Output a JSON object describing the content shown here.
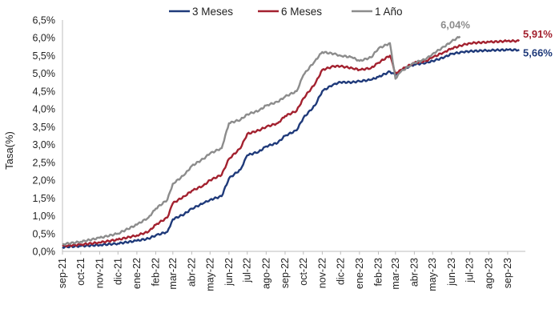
{
  "chart_data": {
    "type": "line",
    "ylabel": "Tasa(%)",
    "ylim": [
      0,
      6.5
    ],
    "yticks": [
      "0,0%",
      "0,5%",
      "1,0%",
      "1,5%",
      "2,0%",
      "2,5%",
      "3,0%",
      "3,5%",
      "4,0%",
      "4,5%",
      "5,0%",
      "5,5%",
      "6,0%",
      "6,5%"
    ],
    "xlim": [
      "2021-09-01",
      "2023-09-30"
    ],
    "xticks": [
      {
        "date": "2021-09-01",
        "label": "sep-21"
      },
      {
        "date": "2021-10-01",
        "label": "oct-21"
      },
      {
        "date": "2021-11-01",
        "label": "nov-21"
      },
      {
        "date": "2021-12-01",
        "label": "dic-21"
      },
      {
        "date": "2022-01-01",
        "label": "ene-22"
      },
      {
        "date": "2022-02-01",
        "label": "feb-22"
      },
      {
        "date": "2022-03-01",
        "label": "mar-22"
      },
      {
        "date": "2022-04-01",
        "label": "abr-22"
      },
      {
        "date": "2022-05-01",
        "label": "may-22"
      },
      {
        "date": "2022-06-01",
        "label": "jun-22"
      },
      {
        "date": "2022-07-01",
        "label": "jul-22"
      },
      {
        "date": "2022-08-01",
        "label": "ago-22"
      },
      {
        "date": "2022-09-01",
        "label": "sep-22"
      },
      {
        "date": "2022-10-01",
        "label": "oct-22"
      },
      {
        "date": "2022-11-01",
        "label": "nov-22"
      },
      {
        "date": "2022-12-01",
        "label": "dic-22"
      },
      {
        "date": "2023-01-01",
        "label": "ene-23"
      },
      {
        "date": "2023-02-01",
        "label": "feb-23"
      },
      {
        "date": "2023-03-01",
        "label": "mar-23"
      },
      {
        "date": "2023-04-01",
        "label": "abr-23"
      },
      {
        "date": "2023-05-01",
        "label": "may-23"
      },
      {
        "date": "2023-06-01",
        "label": "jun-23"
      },
      {
        "date": "2023-07-01",
        "label": "jul-23"
      },
      {
        "date": "2023-08-01",
        "label": "ago-23"
      },
      {
        "date": "2023-09-01",
        "label": "sep-23"
      }
    ],
    "grid": false,
    "legend_position": "top",
    "series": [
      {
        "name": "3 Meses",
        "color": "#1F3A7A",
        "end_label": "5,66%",
        "points": [
          [
            "2021-09-01",
            0.12
          ],
          [
            "2021-10-01",
            0.15
          ],
          [
            "2021-11-01",
            0.18
          ],
          [
            "2021-12-01",
            0.22
          ],
          [
            "2022-01-01",
            0.3
          ],
          [
            "2022-01-20",
            0.36
          ],
          [
            "2022-02-01",
            0.45
          ],
          [
            "2022-02-20",
            0.55
          ],
          [
            "2022-03-01",
            0.9
          ],
          [
            "2022-03-20",
            1.05
          ],
          [
            "2022-04-01",
            1.2
          ],
          [
            "2022-04-20",
            1.35
          ],
          [
            "2022-05-01",
            1.45
          ],
          [
            "2022-05-20",
            1.55
          ],
          [
            "2022-06-01",
            2.05
          ],
          [
            "2022-06-20",
            2.3
          ],
          [
            "2022-07-01",
            2.7
          ],
          [
            "2022-07-20",
            2.8
          ],
          [
            "2022-08-01",
            2.95
          ],
          [
            "2022-08-20",
            3.05
          ],
          [
            "2022-09-01",
            3.25
          ],
          [
            "2022-09-20",
            3.4
          ],
          [
            "2022-10-01",
            3.75
          ],
          [
            "2022-10-20",
            4.1
          ],
          [
            "2022-11-01",
            4.5
          ],
          [
            "2022-11-20",
            4.7
          ],
          [
            "2022-12-01",
            4.75
          ],
          [
            "2022-12-20",
            4.75
          ],
          [
            "2023-01-01",
            4.78
          ],
          [
            "2023-01-20",
            4.82
          ],
          [
            "2023-02-01",
            4.9
          ],
          [
            "2023-02-20",
            5.05
          ],
          [
            "2023-03-01",
            4.95
          ],
          [
            "2023-03-10",
            5.1
          ],
          [
            "2023-04-01",
            5.25
          ],
          [
            "2023-04-20",
            5.3
          ],
          [
            "2023-05-01",
            5.35
          ],
          [
            "2023-05-20",
            5.45
          ],
          [
            "2023-06-01",
            5.55
          ],
          [
            "2023-06-20",
            5.6
          ],
          [
            "2023-07-01",
            5.62
          ],
          [
            "2023-08-01",
            5.65
          ],
          [
            "2023-09-01",
            5.66
          ],
          [
            "2023-09-20",
            5.66
          ]
        ]
      },
      {
        "name": "6 Meses",
        "color": "#A3212F",
        "end_label": "5,91%",
        "points": [
          [
            "2021-09-01",
            0.15
          ],
          [
            "2021-10-01",
            0.19
          ],
          [
            "2021-11-01",
            0.25
          ],
          [
            "2021-12-01",
            0.33
          ],
          [
            "2022-01-01",
            0.45
          ],
          [
            "2022-01-20",
            0.55
          ],
          [
            "2022-02-01",
            0.75
          ],
          [
            "2022-02-20",
            0.95
          ],
          [
            "2022-03-01",
            1.35
          ],
          [
            "2022-03-20",
            1.55
          ],
          [
            "2022-04-01",
            1.7
          ],
          [
            "2022-04-20",
            1.85
          ],
          [
            "2022-05-01",
            2.0
          ],
          [
            "2022-05-20",
            2.15
          ],
          [
            "2022-06-01",
            2.6
          ],
          [
            "2022-06-20",
            2.9
          ],
          [
            "2022-07-01",
            3.3
          ],
          [
            "2022-07-20",
            3.4
          ],
          [
            "2022-08-01",
            3.5
          ],
          [
            "2022-08-20",
            3.6
          ],
          [
            "2022-09-01",
            3.8
          ],
          [
            "2022-09-20",
            3.95
          ],
          [
            "2022-10-01",
            4.3
          ],
          [
            "2022-10-20",
            4.7
          ],
          [
            "2022-11-01",
            5.1
          ],
          [
            "2022-11-20",
            5.2
          ],
          [
            "2022-12-01",
            5.2
          ],
          [
            "2022-12-20",
            5.15
          ],
          [
            "2023-01-01",
            5.1
          ],
          [
            "2023-01-20",
            5.15
          ],
          [
            "2023-02-01",
            5.3
          ],
          [
            "2023-02-20",
            5.5
          ],
          [
            "2023-03-01",
            5.0
          ],
          [
            "2023-03-10",
            5.1
          ],
          [
            "2023-04-01",
            5.3
          ],
          [
            "2023-04-20",
            5.35
          ],
          [
            "2023-05-01",
            5.45
          ],
          [
            "2023-05-20",
            5.6
          ],
          [
            "2023-06-01",
            5.7
          ],
          [
            "2023-06-20",
            5.8
          ],
          [
            "2023-07-01",
            5.85
          ],
          [
            "2023-08-01",
            5.88
          ],
          [
            "2023-09-01",
            5.91
          ],
          [
            "2023-09-20",
            5.91
          ]
        ]
      },
      {
        "name": "1 Año",
        "color": "#8C8C8C",
        "end_label": "6,04%",
        "points": [
          [
            "2021-09-01",
            0.2
          ],
          [
            "2021-10-01",
            0.27
          ],
          [
            "2021-11-01",
            0.38
          ],
          [
            "2021-12-01",
            0.5
          ],
          [
            "2022-01-01",
            0.75
          ],
          [
            "2022-01-20",
            0.95
          ],
          [
            "2022-02-01",
            1.2
          ],
          [
            "2022-02-20",
            1.45
          ],
          [
            "2022-03-01",
            1.9
          ],
          [
            "2022-03-20",
            2.15
          ],
          [
            "2022-04-01",
            2.4
          ],
          [
            "2022-04-20",
            2.6
          ],
          [
            "2022-05-01",
            2.75
          ],
          [
            "2022-05-20",
            2.9
          ],
          [
            "2022-06-01",
            3.6
          ],
          [
            "2022-06-20",
            3.7
          ],
          [
            "2022-07-01",
            3.85
          ],
          [
            "2022-07-20",
            3.95
          ],
          [
            "2022-08-01",
            4.1
          ],
          [
            "2022-08-20",
            4.2
          ],
          [
            "2022-09-01",
            4.35
          ],
          [
            "2022-09-20",
            4.5
          ],
          [
            "2022-10-01",
            4.95
          ],
          [
            "2022-10-20",
            5.35
          ],
          [
            "2022-11-01",
            5.6
          ],
          [
            "2022-11-20",
            5.55
          ],
          [
            "2022-12-01",
            5.5
          ],
          [
            "2022-12-20",
            5.45
          ],
          [
            "2023-01-01",
            5.35
          ],
          [
            "2023-01-20",
            5.45
          ],
          [
            "2023-02-01",
            5.7
          ],
          [
            "2023-02-20",
            5.85
          ],
          [
            "2023-03-01",
            4.85
          ],
          [
            "2023-03-10",
            5.05
          ],
          [
            "2023-04-01",
            5.3
          ],
          [
            "2023-04-20",
            5.4
          ],
          [
            "2023-05-01",
            5.55
          ],
          [
            "2023-05-20",
            5.75
          ],
          [
            "2023-06-01",
            5.9
          ],
          [
            "2023-06-15",
            6.04
          ]
        ]
      }
    ]
  }
}
